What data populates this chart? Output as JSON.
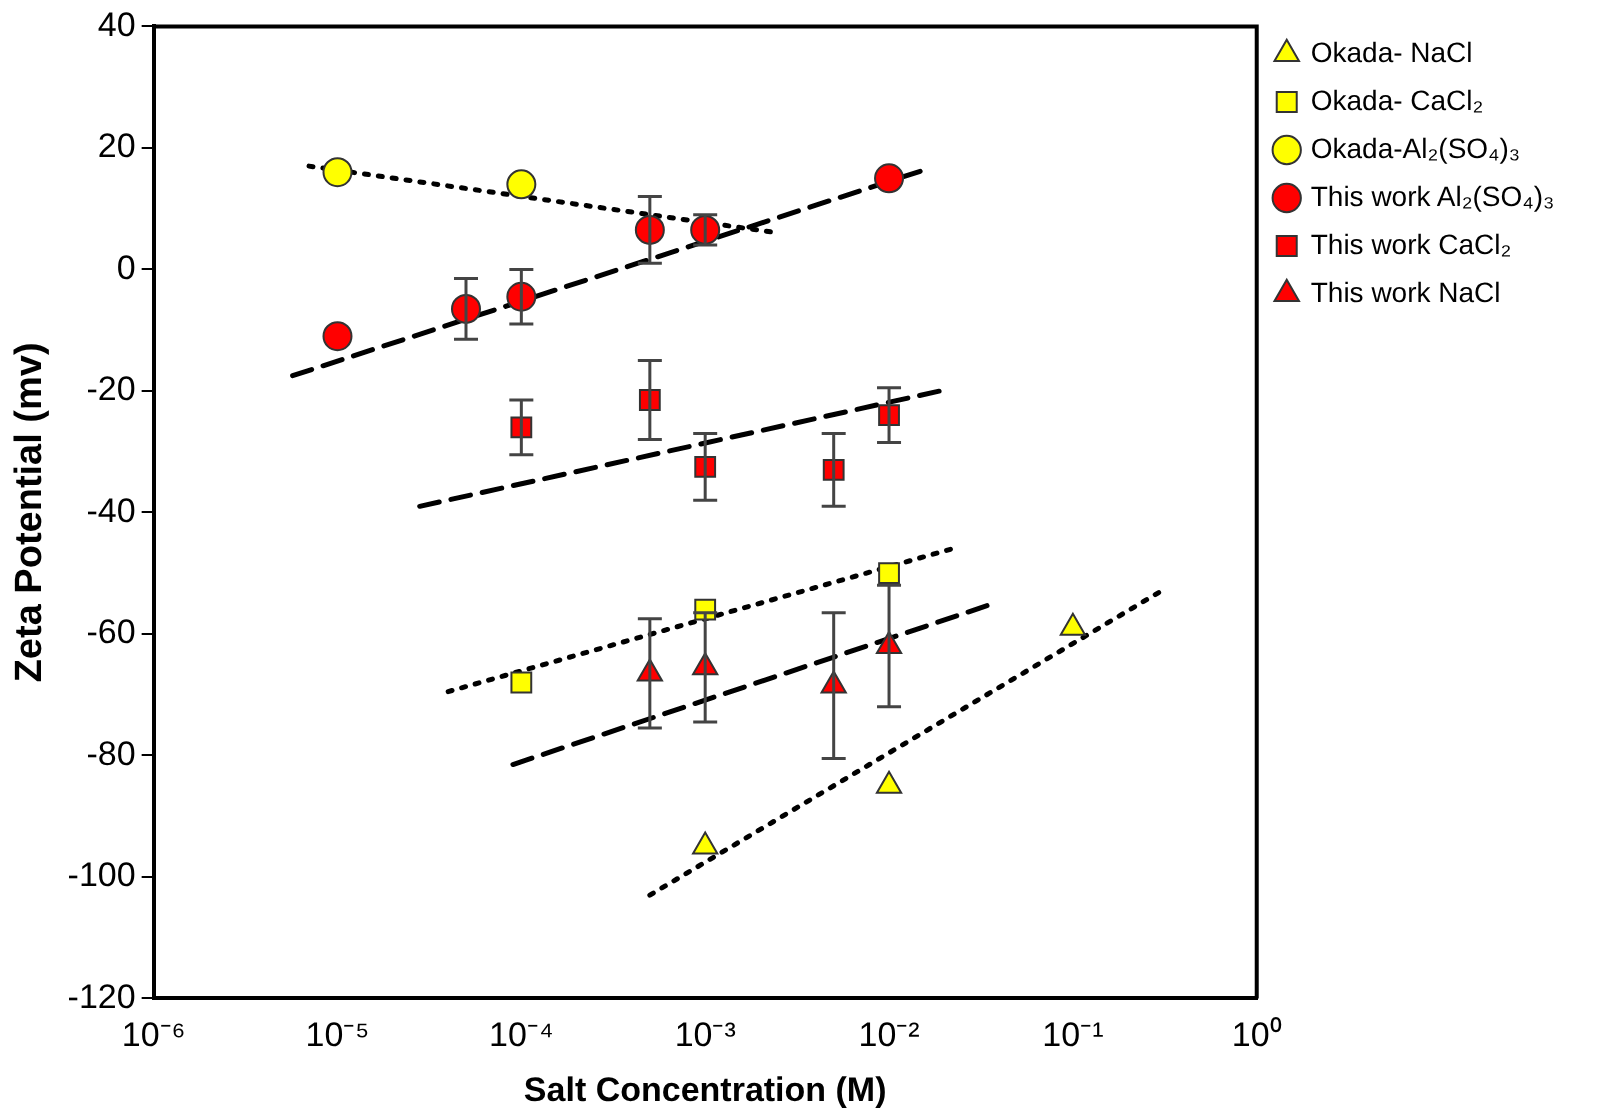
{
  "chart_data": {
    "type": "scatter",
    "xlabel": "Salt Concentration (M)",
    "ylabel": "Zeta Potential (mv)",
    "log": "x",
    "grid": false,
    "legend": "top right",
    "xlim": [
      1e-06,
      1
    ],
    "xticks": [
      {
        "value": 1e-06,
        "label": "10⁻⁶"
      },
      {
        "value": 1e-05,
        "label": "10⁻⁵"
      },
      {
        "value": 0.0001,
        "label": "10⁻⁴"
      },
      {
        "value": 0.001,
        "label": "10⁻³"
      },
      {
        "value": 0.01,
        "label": "10⁻²"
      },
      {
        "value": 0.1,
        "label": "10⁻¹"
      },
      {
        "value": 1,
        "label": "10⁰"
      }
    ],
    "ylim": [
      -120,
      40
    ],
    "yticks": [
      -120,
      -100,
      -80,
      -60,
      -40,
      -20,
      0,
      20,
      40
    ],
    "series": [
      {
        "name": "Okada- NaCl",
        "marker": "triangle",
        "color": "#ffff00",
        "x": [
          0.001,
          0.01,
          0.1
        ],
        "values": [
          -95,
          -85,
          -59
        ]
      },
      {
        "name": "Okada- CaCl₂",
        "marker": "square",
        "color": "#ffff00",
        "x": [
          0.0001,
          0.001,
          0.01
        ],
        "values": [
          -68,
          -56,
          -50
        ]
      },
      {
        "name": "Okada-Al₂(SO₄)₃",
        "marker": "circle",
        "color": "#ffff00",
        "x": [
          1e-05,
          0.0001
        ],
        "values": [
          16,
          14
        ]
      },
      {
        "name": "This work Al₂(SO₄)₃",
        "marker": "circle",
        "color": "#ff0000",
        "x": [
          1e-05,
          5e-05,
          0.0001,
          0.0005,
          0.001,
          0.01
        ],
        "values": [
          -11,
          -6.5,
          -4.5,
          6.5,
          6.5,
          15
        ],
        "errors": [
          null,
          5,
          4.5,
          5.5,
          2.5,
          null
        ]
      },
      {
        "name": "This work CaCl₂",
        "marker": "square",
        "color": "#ff0000",
        "x": [
          0.0001,
          0.0005,
          0.001,
          0.005,
          0.01
        ],
        "values": [
          -26,
          -21.5,
          -32.5,
          -33,
          -24
        ],
        "errors": [
          4.5,
          6.5,
          5.5,
          6,
          4.5
        ]
      },
      {
        "name": "This work NaCl",
        "marker": "triangle",
        "color": "#ff0000",
        "x": [
          0.0005,
          0.001,
          0.005,
          0.01
        ],
        "values": [
          -66.5,
          -65.5,
          -68.5,
          -62
        ],
        "errors": [
          9,
          9,
          12,
          10
        ]
      },
      {
        "type": "line",
        "line_style": "dotted",
        "marker": "none",
        "color": "#000000",
        "x": [
          0.0005,
          0.3
        ],
        "values": [
          -103,
          -53
        ]
      },
      {
        "type": "line",
        "line_style": "dotted",
        "marker": "none",
        "color": "#000000",
        "x": [
          4e-05,
          0.022
        ],
        "values": [
          -69.5,
          -46
        ]
      },
      {
        "type": "line",
        "line_style": "dotted",
        "marker": "none",
        "color": "#000000",
        "x": [
          7e-06,
          0.0025
        ],
        "values": [
          17,
          6
        ]
      },
      {
        "type": "line",
        "line_style": "dashed",
        "marker": "none",
        "color": "#000000",
        "x": [
          5.7e-06,
          0.016
        ],
        "values": [
          -17.5,
          16.5
        ]
      },
      {
        "type": "line",
        "line_style": "dashed",
        "marker": "none",
        "color": "#000000",
        "x": [
          2.8e-05,
          0.019
        ],
        "values": [
          -39,
          -20
        ]
      },
      {
        "type": "line",
        "line_style": "dashed",
        "marker": "none",
        "color": "#000000",
        "x": [
          9e-05,
          0.037
        ],
        "values": [
          -81.5,
          -55
        ]
      }
    ]
  }
}
